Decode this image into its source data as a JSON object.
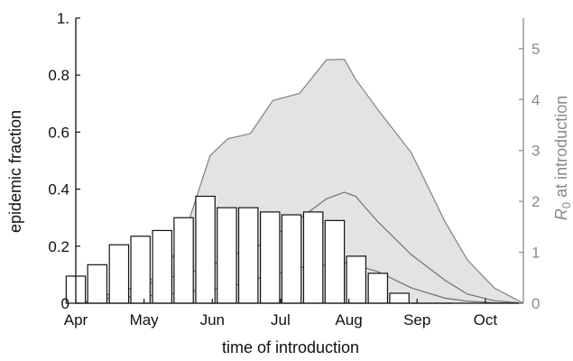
{
  "chart_data": {
    "type": "bar",
    "xlabel": "time of introduction",
    "ylabel_left": "epidemic fraction",
    "ylabel_right_italic": "R",
    "ylabel_right_subscript": "0",
    "ylabel_right_rest": " at introduction",
    "ylim_left": [
      0,
      1.0
    ],
    "ylim_right": [
      0,
      5.6
    ],
    "left_ticks": [
      {
        "value": 0,
        "label": "0"
      },
      {
        "value": 0.2,
        "label": "0.2"
      },
      {
        "value": 0.4,
        "label": "0.4"
      },
      {
        "value": 0.6,
        "label": "0.6"
      },
      {
        "value": 0.8,
        "label": "0.8"
      },
      {
        "value": 1.0,
        "label": "1."
      }
    ],
    "right_ticks": [
      {
        "value": 0,
        "label": "0"
      },
      {
        "value": 1,
        "label": "1"
      },
      {
        "value": 2,
        "label": "2"
      },
      {
        "value": 3,
        "label": "3"
      },
      {
        "value": 4,
        "label": "4"
      },
      {
        "value": 5,
        "label": "5"
      }
    ],
    "xlim": [
      0,
      200
    ],
    "x_ticks": [
      {
        "value": 0,
        "label": "Apr"
      },
      {
        "value": 30.5,
        "label": "May"
      },
      {
        "value": 61,
        "label": "Jun"
      },
      {
        "value": 91.5,
        "label": "Jul"
      },
      {
        "value": 122,
        "label": "Aug"
      },
      {
        "value": 152.5,
        "label": "Sep"
      },
      {
        "value": 183,
        "label": "Oct"
      }
    ],
    "bars": {
      "x": [
        0,
        9.6,
        19.3,
        28.9,
        38.6,
        48.2,
        57.9,
        67.5,
        77.1,
        86.8,
        96.4,
        106.1,
        115.7,
        125.3,
        135.0,
        144.6,
        154.3,
        163.9
      ],
      "values": [
        0.095,
        0.135,
        0.205,
        0.235,
        0.255,
        0.3,
        0.375,
        0.335,
        0.335,
        0.32,
        0.31,
        0.32,
        0.29,
        0.165,
        0.105,
        0.035,
        0.0,
        0.0
      ],
      "width": 8.6,
      "fill": "#ffffff",
      "stroke": "#111111"
    },
    "r0_band": {
      "x": [
        3,
        15,
        30,
        40,
        48,
        60,
        68,
        78,
        88,
        100,
        112,
        120,
        125,
        135,
        150,
        165,
        175,
        187,
        200
      ],
      "upper": [
        0.0,
        0.18,
        0.36,
        0.66,
        1.28,
        2.9,
        3.23,
        3.33,
        3.98,
        4.12,
        4.78,
        4.79,
        4.4,
        3.8,
        2.95,
        1.6,
        0.85,
        0.3,
        0.0
      ],
      "fill": "#e3e3e3",
      "stroke": "#808080"
    },
    "r0_median": {
      "x": [
        3,
        15,
        30,
        40,
        48,
        60,
        68,
        78,
        88,
        100,
        112,
        120,
        125,
        135,
        150,
        165,
        175,
        187,
        200
      ],
      "values": [
        0.0,
        0.18,
        0.36,
        0.48,
        0.58,
        0.7,
        0.95,
        1.02,
        1.3,
        1.66,
        2.05,
        2.18,
        2.1,
        1.6,
        0.95,
        0.45,
        0.18,
        0.05,
        0.0
      ],
      "stroke": "#707070"
    },
    "r0_lower": {
      "x": [
        3,
        15,
        30,
        40,
        48,
        60,
        68,
        78,
        88,
        100,
        112,
        120,
        125,
        135,
        150,
        165,
        175,
        187,
        200
      ],
      "values": [
        0.0,
        0.1,
        0.14,
        0.17,
        0.22,
        0.28,
        0.3,
        0.45,
        0.55,
        0.7,
        0.75,
        0.8,
        0.75,
        0.62,
        0.3,
        0.1,
        0.04,
        0.01,
        0.0
      ],
      "stroke": "#707070"
    },
    "colors": {
      "axis_left": "#111111",
      "axis_right": "#8a8a8a",
      "band_fill": "#e3e3e3",
      "band_line": "#808080"
    }
  }
}
